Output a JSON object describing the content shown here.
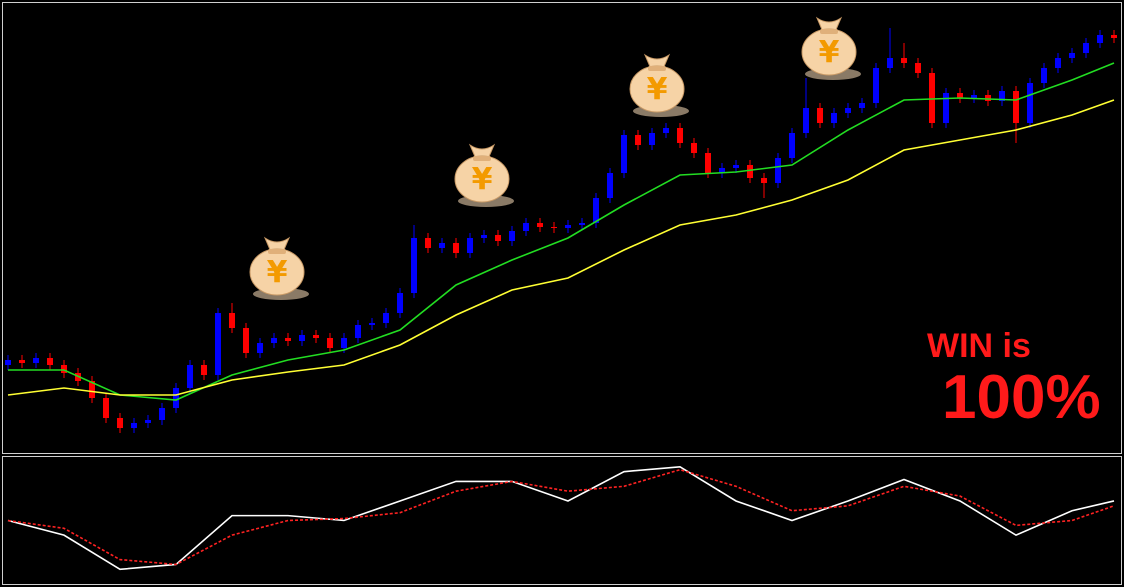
{
  "chart_data": {
    "type": "candlestick",
    "up_color": "#0000ff",
    "down_color": "#ff0000",
    "ylim": [
      0,
      450
    ],
    "open": [
      88,
      93,
      90,
      95,
      88,
      80,
      72,
      55,
      35,
      25,
      30,
      33,
      45,
      65,
      88,
      78,
      140,
      125,
      100,
      110,
      115,
      112,
      118,
      115,
      105,
      115,
      128,
      130,
      140,
      160,
      215,
      205,
      210,
      200,
      215,
      218,
      212,
      222,
      230,
      226,
      225,
      228,
      230,
      255,
      280,
      318,
      308,
      320,
      325,
      310,
      300,
      280,
      285,
      288,
      275,
      270,
      295,
      320,
      345,
      330,
      340,
      345,
      350,
      385,
      395,
      390,
      380,
      330,
      360,
      355,
      358,
      352,
      362,
      330,
      370,
      385,
      395,
      400,
      410,
      418
    ],
    "high": [
      98,
      98,
      100,
      100,
      93,
      85,
      77,
      60,
      40,
      35,
      38,
      50,
      70,
      93,
      93,
      145,
      150,
      130,
      115,
      120,
      120,
      123,
      123,
      120,
      120,
      133,
      135,
      145,
      165,
      228,
      220,
      215,
      215,
      220,
      223,
      223,
      227,
      235,
      235,
      231,
      233,
      235,
      260,
      285,
      323,
      323,
      325,
      330,
      330,
      315,
      305,
      290,
      293,
      293,
      280,
      300,
      325,
      375,
      350,
      345,
      350,
      355,
      390,
      425,
      410,
      395,
      385,
      365,
      365,
      363,
      363,
      367,
      367,
      375,
      390,
      400,
      405,
      415,
      423,
      423
    ],
    "low": [
      83,
      85,
      85,
      83,
      75,
      67,
      50,
      30,
      20,
      20,
      25,
      28,
      40,
      60,
      73,
      73,
      120,
      95,
      95,
      105,
      107,
      107,
      110,
      100,
      100,
      110,
      123,
      125,
      135,
      155,
      200,
      200,
      195,
      195,
      210,
      207,
      207,
      217,
      221,
      220,
      220,
      223,
      225,
      250,
      275,
      303,
      303,
      315,
      305,
      295,
      275,
      275,
      280,
      270,
      255,
      265,
      290,
      315,
      325,
      325,
      335,
      340,
      345,
      380,
      385,
      375,
      325,
      325,
      350,
      350,
      347,
      347,
      310,
      325,
      365,
      380,
      390,
      395,
      405,
      410
    ],
    "close": [
      93,
      90,
      95,
      88,
      80,
      72,
      55,
      35,
      25,
      30,
      33,
      45,
      65,
      88,
      78,
      140,
      125,
      100,
      110,
      115,
      112,
      118,
      115,
      105,
      115,
      128,
      130,
      140,
      160,
      215,
      205,
      210,
      200,
      215,
      218,
      212,
      222,
      230,
      226,
      225,
      228,
      230,
      255,
      280,
      318,
      308,
      320,
      325,
      310,
      300,
      280,
      285,
      288,
      275,
      270,
      295,
      320,
      345,
      330,
      340,
      345,
      350,
      385,
      395,
      390,
      380,
      330,
      360,
      355,
      358,
      352,
      362,
      330,
      370,
      385,
      395,
      400,
      410,
      418,
      415
    ],
    "series": [
      {
        "color": "#22dd22",
        "x": [
          0,
          4,
          8,
          12,
          16,
          20,
          24,
          28,
          32,
          36,
          40,
          44,
          48,
          52,
          56,
          60,
          64,
          68,
          72,
          76,
          79
        ],
        "values": [
          83,
          83,
          58,
          53,
          78,
          93,
          103,
          123,
          168,
          193,
          215,
          248,
          278,
          281,
          288,
          323,
          353,
          355,
          353,
          373,
          390
        ]
      },
      {
        "color": "#ffff33",
        "x": [
          0,
          4,
          8,
          12,
          16,
          20,
          24,
          28,
          32,
          36,
          40,
          44,
          48,
          52,
          56,
          60,
          64,
          68,
          72,
          76,
          79
        ],
        "values": [
          58,
          65,
          58,
          58,
          73,
          81,
          88,
          108,
          138,
          163,
          175,
          203,
          228,
          238,
          253,
          273,
          303,
          313,
          323,
          338,
          353
        ]
      }
    ],
    "annotations": [
      "WIN is",
      "100%"
    ],
    "bag_symbol": "¥",
    "oscillator": {
      "type": "line",
      "ylim": [
        0,
        130
      ],
      "series": [
        {
          "color": "#ffffff",
          "x": [
            0,
            4,
            8,
            12,
            16,
            20,
            24,
            28,
            32,
            36,
            40,
            44,
            48,
            52,
            56,
            60,
            64,
            68,
            72,
            76,
            79
          ],
          "values": [
            65,
            50,
            15,
            20,
            70,
            70,
            65,
            85,
            105,
            105,
            85,
            115,
            120,
            85,
            65,
            85,
            107,
            85,
            50,
            75,
            85
          ]
        },
        {
          "color": "#ff2222",
          "dashed": true,
          "x": [
            0,
            4,
            8,
            12,
            16,
            20,
            24,
            28,
            32,
            36,
            40,
            44,
            48,
            52,
            56,
            60,
            64,
            68,
            72,
            76,
            79
          ],
          "values": [
            65,
            57,
            25,
            20,
            50,
            65,
            67,
            73,
            95,
            105,
            95,
            100,
            117,
            100,
            75,
            80,
            100,
            90,
            60,
            65,
            80
          ]
        }
      ]
    }
  }
}
